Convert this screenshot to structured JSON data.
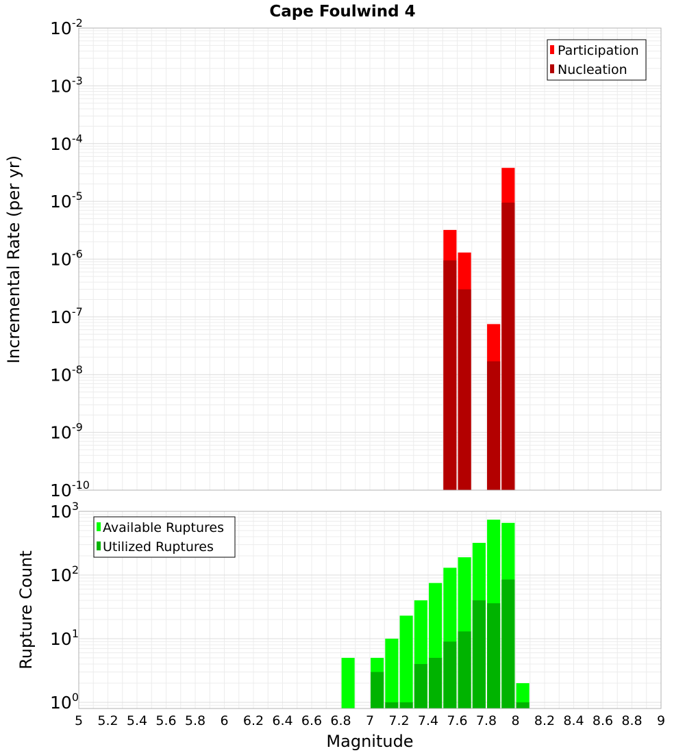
{
  "chart_data": [
    {
      "type": "bar",
      "title": "Cape Foulwind 4",
      "xlabel": "Magnitude",
      "ylabel": "Incremental Rate (per yr)",
      "yscale": "log",
      "ylim": [
        1e-10,
        0.01
      ],
      "xlim": [
        5,
        9
      ],
      "grid": true,
      "bar_width": 0.09,
      "legend_position": "top-right",
      "y_ticks": [
        {
          "base": "10",
          "exp": "-10",
          "value": 1e-10
        },
        {
          "base": "10",
          "exp": "-9",
          "value": 1e-09
        },
        {
          "base": "10",
          "exp": "-8",
          "value": 1e-08
        },
        {
          "base": "10",
          "exp": "-7",
          "value": 1e-07
        },
        {
          "base": "10",
          "exp": "-6",
          "value": 1e-06
        },
        {
          "base": "10",
          "exp": "-5",
          "value": 1e-05
        },
        {
          "base": "10",
          "exp": "-4",
          "value": 0.0001
        },
        {
          "base": "10",
          "exp": "-3",
          "value": 0.001
        },
        {
          "base": "10",
          "exp": "-2",
          "value": 0.01
        }
      ],
      "series": [
        {
          "name": "Participation",
          "color": "#ff0000",
          "x": [
            7.55,
            7.65,
            7.85,
            7.95
          ],
          "values": [
            3.2e-06,
            1.3e-06,
            7.5e-08,
            3.8e-05
          ]
        },
        {
          "name": "Nucleation",
          "color": "#b30000",
          "x": [
            7.55,
            7.65,
            7.85,
            7.95
          ],
          "values": [
            9.5e-07,
            3e-07,
            1.7e-08,
            9.5e-06
          ]
        }
      ]
    },
    {
      "type": "bar",
      "title": "",
      "xlabel": "Magnitude",
      "ylabel": "Rupture Count",
      "yscale": "log",
      "ylim": [
        0.8,
        1000
      ],
      "xlim": [
        5,
        9
      ],
      "grid": true,
      "bar_width": 0.09,
      "legend_position": "top-left",
      "y_ticks": [
        {
          "base": "10",
          "exp": "0",
          "value": 1
        },
        {
          "base": "10",
          "exp": "1",
          "value": 10
        },
        {
          "base": "10",
          "exp": "2",
          "value": 100
        },
        {
          "base": "10",
          "exp": "3",
          "value": 1000
        }
      ],
      "x_ticks": [
        "5",
        "5.2",
        "5.4",
        "5.6",
        "5.8",
        "6",
        "6.2",
        "6.4",
        "6.6",
        "6.8",
        "7",
        "7.2",
        "7.4",
        "7.6",
        "7.8",
        "8",
        "8.2",
        "8.4",
        "8.6",
        "8.8",
        "9"
      ],
      "series": [
        {
          "name": "Available Ruptures",
          "color": "#00ff00",
          "x": [
            6.85,
            7.05,
            7.15,
            7.25,
            7.35,
            7.45,
            7.55,
            7.65,
            7.75,
            7.85,
            7.95,
            8.05
          ],
          "values": [
            5,
            5,
            10,
            23,
            40,
            75,
            130,
            190,
            320,
            740,
            660,
            2
          ]
        },
        {
          "name": "Utilized Ruptures",
          "color": "#00b300",
          "x": [
            7.05,
            7.15,
            7.25,
            7.35,
            7.45,
            7.55,
            7.65,
            7.75,
            7.85,
            7.95,
            8.05
          ],
          "values": [
            3,
            1,
            1,
            4,
            5,
            9,
            13,
            40,
            36,
            85,
            1
          ]
        }
      ]
    }
  ]
}
